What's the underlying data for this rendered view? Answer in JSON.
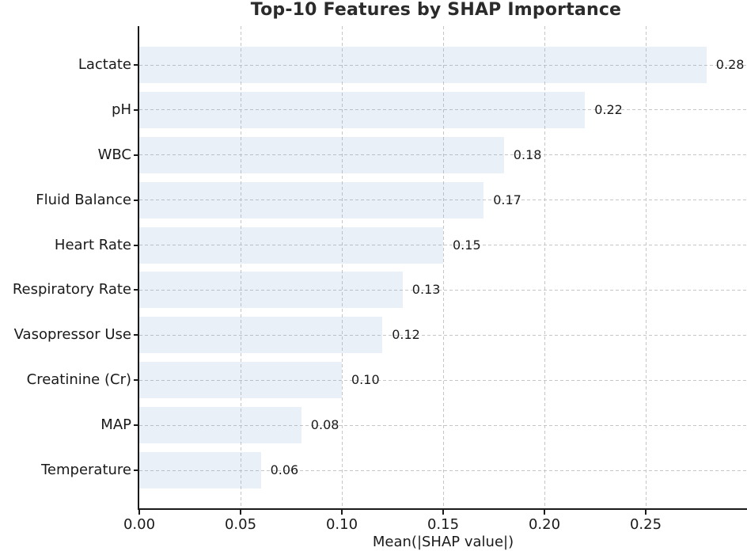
{
  "chart_data": {
    "type": "bar",
    "orientation": "horizontal",
    "title": "Top-10 Features by SHAP Importance",
    "xlabel": "Mean(|SHAP value|)",
    "ylabel": "",
    "categories": [
      "Lactate",
      "pH",
      "WBC",
      "Fluid Balance",
      "Heart Rate",
      "Respiratory Rate",
      "Vasopressor Use",
      "Creatinine (Cr)",
      "MAP",
      "Temperature"
    ],
    "values": [
      0.28,
      0.22,
      0.18,
      0.17,
      0.15,
      0.13,
      0.12,
      0.1,
      0.08,
      0.06
    ],
    "value_labels": [
      "0.28",
      "0.22",
      "0.18",
      "0.17",
      "0.15",
      "0.13",
      "0.12",
      "0.10",
      "0.08",
      "0.06"
    ],
    "xlim": [
      0,
      0.3
    ],
    "xticks": [
      0,
      0.05,
      0.1,
      0.15,
      0.2,
      0.25
    ],
    "xtick_labels": [
      "0.00",
      "0.05",
      "0.10",
      "0.15",
      "0.20",
      "0.25"
    ],
    "grid": true,
    "grid_style": "dashed",
    "legend_position": "none",
    "colors": {
      "bar_fill": "rgba(116,160,212,0.16)",
      "grid": "#c6c6c6",
      "spine": "#1a1a1a",
      "text": "#1a1a1a",
      "title_text": "#2b2b2b"
    }
  }
}
